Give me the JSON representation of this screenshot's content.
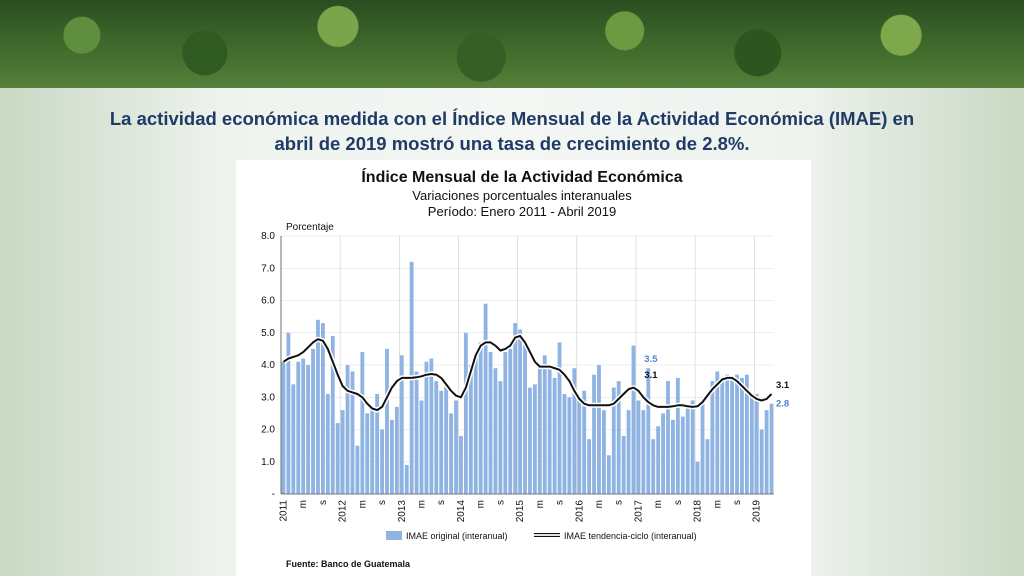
{
  "headline": "La actividad económica medida con el Índice Mensual de la Actividad Económica (IMAE) en abril de 2019 mostró una tasa de crecimiento de 2.8%.",
  "chart_data": {
    "type": "bar",
    "title": "Índice Mensual de la Actividad Económica",
    "subtitle": "Variaciones porcentuales interanuales",
    "period": "Período: Enero 2011 - Abril 2019",
    "ylabel": "Porcentaje",
    "ylim": [
      0,
      8
    ],
    "yticks": [
      "-",
      "1.0",
      "2.0",
      "3.0",
      "4.0",
      "5.0",
      "6.0",
      "7.0",
      "8.0"
    ],
    "xlabels": [
      "2011",
      "m",
      "s",
      "2012",
      "m",
      "s",
      "2013",
      "m",
      "s",
      "2014",
      "m",
      "s",
      "2015",
      "m",
      "s",
      "2016",
      "m",
      "s",
      "2017",
      "m",
      "s",
      "2018",
      "m",
      "s",
      "2019"
    ],
    "source": "Fuente: Banco de Guatemala",
    "series": [
      {
        "name": "IMAE original (interanual)",
        "color": "#8fb4e3",
        "values": [
          4.1,
          5.0,
          3.4,
          4.1,
          4.2,
          4.0,
          4.5,
          5.4,
          5.3,
          3.1,
          4.9,
          2.2,
          2.6,
          4.0,
          3.8,
          1.5,
          4.4,
          2.5,
          2.7,
          3.1,
          2.0,
          4.5,
          2.3,
          2.7,
          4.3,
          0.9,
          7.2,
          3.8,
          2.9,
          4.1,
          4.2,
          3.5,
          3.2,
          3.4,
          2.5,
          2.9,
          1.8,
          5.0,
          4.0,
          4.4,
          4.7,
          5.9,
          4.4,
          3.9,
          3.5,
          4.4,
          4.5,
          5.3,
          5.1,
          4.7,
          3.3,
          3.4,
          4.0,
          4.3,
          4.0,
          3.6,
          4.7,
          3.1,
          3.0,
          3.9,
          2.9,
          3.2,
          1.7,
          3.7,
          4.0,
          2.6,
          1.2,
          3.3,
          3.5,
          1.8,
          2.6,
          4.6,
          2.9,
          2.6,
          3.9,
          1.7,
          2.1,
          2.5,
          3.5,
          2.3,
          3.6,
          2.4,
          2.7,
          2.9,
          1.0,
          2.8,
          1.7,
          3.5,
          3.8,
          3.5,
          3.7,
          3.6,
          3.7,
          3.6,
          3.7,
          3.0,
          3.1,
          2.0,
          2.6,
          2.8
        ]
      },
      {
        "name": "IMAE tendencia-ciclo (interanual)",
        "color": "#111111",
        "values": [
          4.1,
          4.2,
          4.25,
          4.3,
          4.4,
          4.55,
          4.7,
          4.8,
          4.75,
          4.5,
          4.1,
          3.7,
          3.35,
          3.2,
          3.15,
          3.1,
          3.0,
          2.8,
          2.65,
          2.6,
          2.7,
          3.0,
          3.3,
          3.5,
          3.6,
          3.6,
          3.6,
          3.62,
          3.65,
          3.7,
          3.72,
          3.7,
          3.6,
          3.4,
          3.2,
          3.05,
          3.0,
          3.3,
          3.8,
          4.3,
          4.6,
          4.7,
          4.7,
          4.6,
          4.45,
          4.5,
          4.6,
          4.85,
          4.9,
          4.7,
          4.4,
          4.1,
          3.95,
          3.95,
          3.95,
          3.9,
          3.85,
          3.7,
          3.5,
          3.2,
          2.95,
          2.8,
          2.75,
          2.75,
          2.75,
          2.75,
          2.75,
          2.8,
          2.95,
          3.1,
          3.25,
          3.3,
          3.2,
          3.0,
          2.85,
          2.75,
          2.7,
          2.7,
          2.7,
          2.72,
          2.75,
          2.75,
          2.72,
          2.7,
          2.72,
          2.85,
          3.05,
          3.25,
          3.4,
          3.55,
          3.6,
          3.6,
          3.5,
          3.35,
          3.2,
          3.05,
          2.95,
          2.9,
          2.95,
          3.1
        ]
      }
    ],
    "annotations": [
      {
        "text": "3.5",
        "color": "#4a86c8",
        "value": 3.5
      },
      {
        "text": "3.1",
        "color": "#111111",
        "value": 3.1
      },
      {
        "text": "3.1",
        "color": "#111111",
        "value": 3.1
      },
      {
        "text": "2.8",
        "color": "#4a86c8",
        "value": 2.8
      }
    ]
  }
}
